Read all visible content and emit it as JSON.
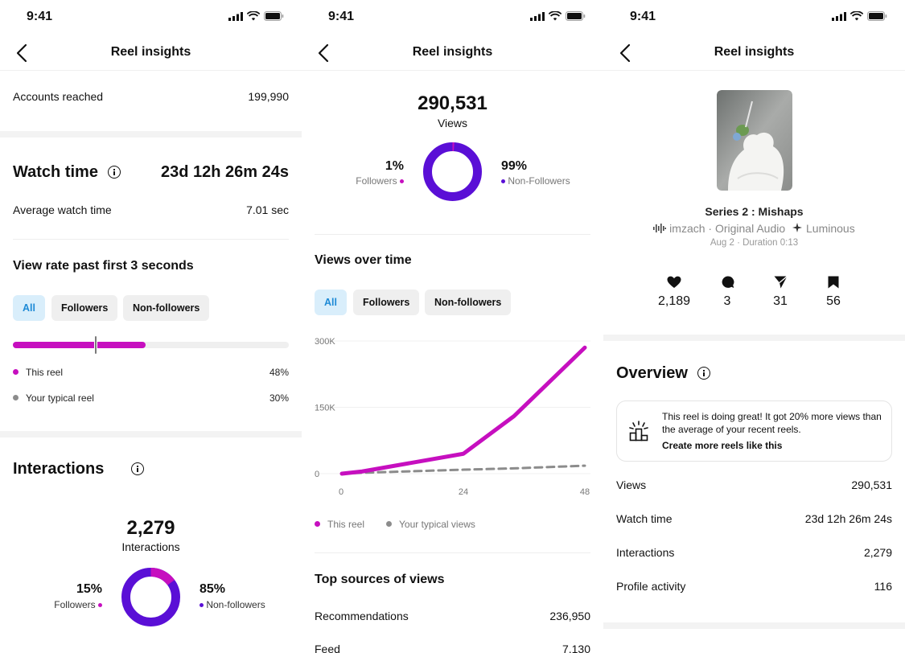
{
  "status": {
    "time": "9:41"
  },
  "nav": {
    "title": "Reel insights"
  },
  "colors": {
    "reel": "#c60fbf",
    "followers": "#c60fbf",
    "non_followers": "#5a0fd6",
    "typical": "#8c8c8c",
    "chip_active_bg": "#d9eefb",
    "chip_active_text": "#1e8ad6"
  },
  "screen1": {
    "accounts_reached": {
      "label": "Accounts reached",
      "value": "199,990"
    },
    "watch_time": {
      "title": "Watch time",
      "value": "23d 12h 26m 24s",
      "icon": "info-icon"
    },
    "avg_watch": {
      "label": "Average watch time",
      "value": "7.01 sec"
    },
    "view_rate": {
      "title": "View rate past first 3 seconds",
      "this_reel_pct": 48,
      "typical_pct": 30
    },
    "chips": [
      "All",
      "Followers",
      "Non-followers"
    ],
    "legend": [
      {
        "label": "This reel",
        "value": "48%"
      },
      {
        "label": "Your typical reel",
        "value": "30%"
      }
    ],
    "interactions": {
      "title": "Interactions",
      "total": "2,279",
      "total_label": "Interactions",
      "followers_pct": "15%",
      "followers_label": "Followers",
      "non_followers_pct": "85%",
      "non_followers_label": "Non-followers",
      "followers_fraction": 0.15
    }
  },
  "screen2": {
    "views": {
      "total": "290,531",
      "label": "Views",
      "followers_pct": "1%",
      "followers_label": "Followers",
      "non_followers_pct": "99%",
      "non_followers_label": "Non-Followers",
      "followers_fraction": 0.01
    },
    "views_over_time": {
      "title": "Views over time"
    },
    "chips": [
      "All",
      "Followers",
      "Non-followers"
    ],
    "legend": [
      "This reel",
      "Your typical views"
    ],
    "top_sources": {
      "title": "Top sources of views",
      "rows": [
        {
          "label": "Recommendations",
          "value": "236,950"
        },
        {
          "label": "Feed",
          "value": "7,130"
        }
      ]
    }
  },
  "chart_data": {
    "type": "line",
    "x": [
      0,
      4,
      24,
      34,
      48
    ],
    "series": [
      {
        "name": "This reel",
        "values": [
          0,
          5000,
          45000,
          130000,
          285000
        ]
      },
      {
        "name": "Your typical views",
        "values": [
          0,
          2000,
          9000,
          12000,
          18000
        ]
      }
    ],
    "x_ticks": [
      "0",
      "24",
      "48"
    ],
    "x_tick_values": [
      0,
      24,
      48
    ],
    "y_ticks": [
      "0",
      "150K",
      "300K"
    ],
    "y_tick_values": [
      0,
      150000,
      300000
    ],
    "xlim": [
      0,
      48
    ],
    "ylim": [
      0,
      300000
    ],
    "grid": true
  },
  "screen3": {
    "reel": {
      "title": "Series 2 : Mishaps",
      "audio": "imzach · Original Audio",
      "effect": "Luminous",
      "meta": "Aug 2 · Duration 0:13"
    },
    "stats": [
      {
        "icon": "heart-icon",
        "value": "2,189"
      },
      {
        "icon": "comment-icon",
        "value": "3"
      },
      {
        "icon": "share-icon",
        "value": "31"
      },
      {
        "icon": "save-icon",
        "value": "56"
      }
    ],
    "overview": {
      "title": "Overview",
      "banner_text": "This reel is doing great! It got 20% more views than the average of your recent reels.",
      "banner_link": "Create more reels like this",
      "rows": [
        {
          "label": "Views",
          "value": "290,531"
        },
        {
          "label": "Watch time",
          "value": "23d 12h 26m 24s"
        },
        {
          "label": "Interactions",
          "value": "2,279"
        },
        {
          "label": "Profile activity",
          "value": "116"
        }
      ]
    }
  }
}
